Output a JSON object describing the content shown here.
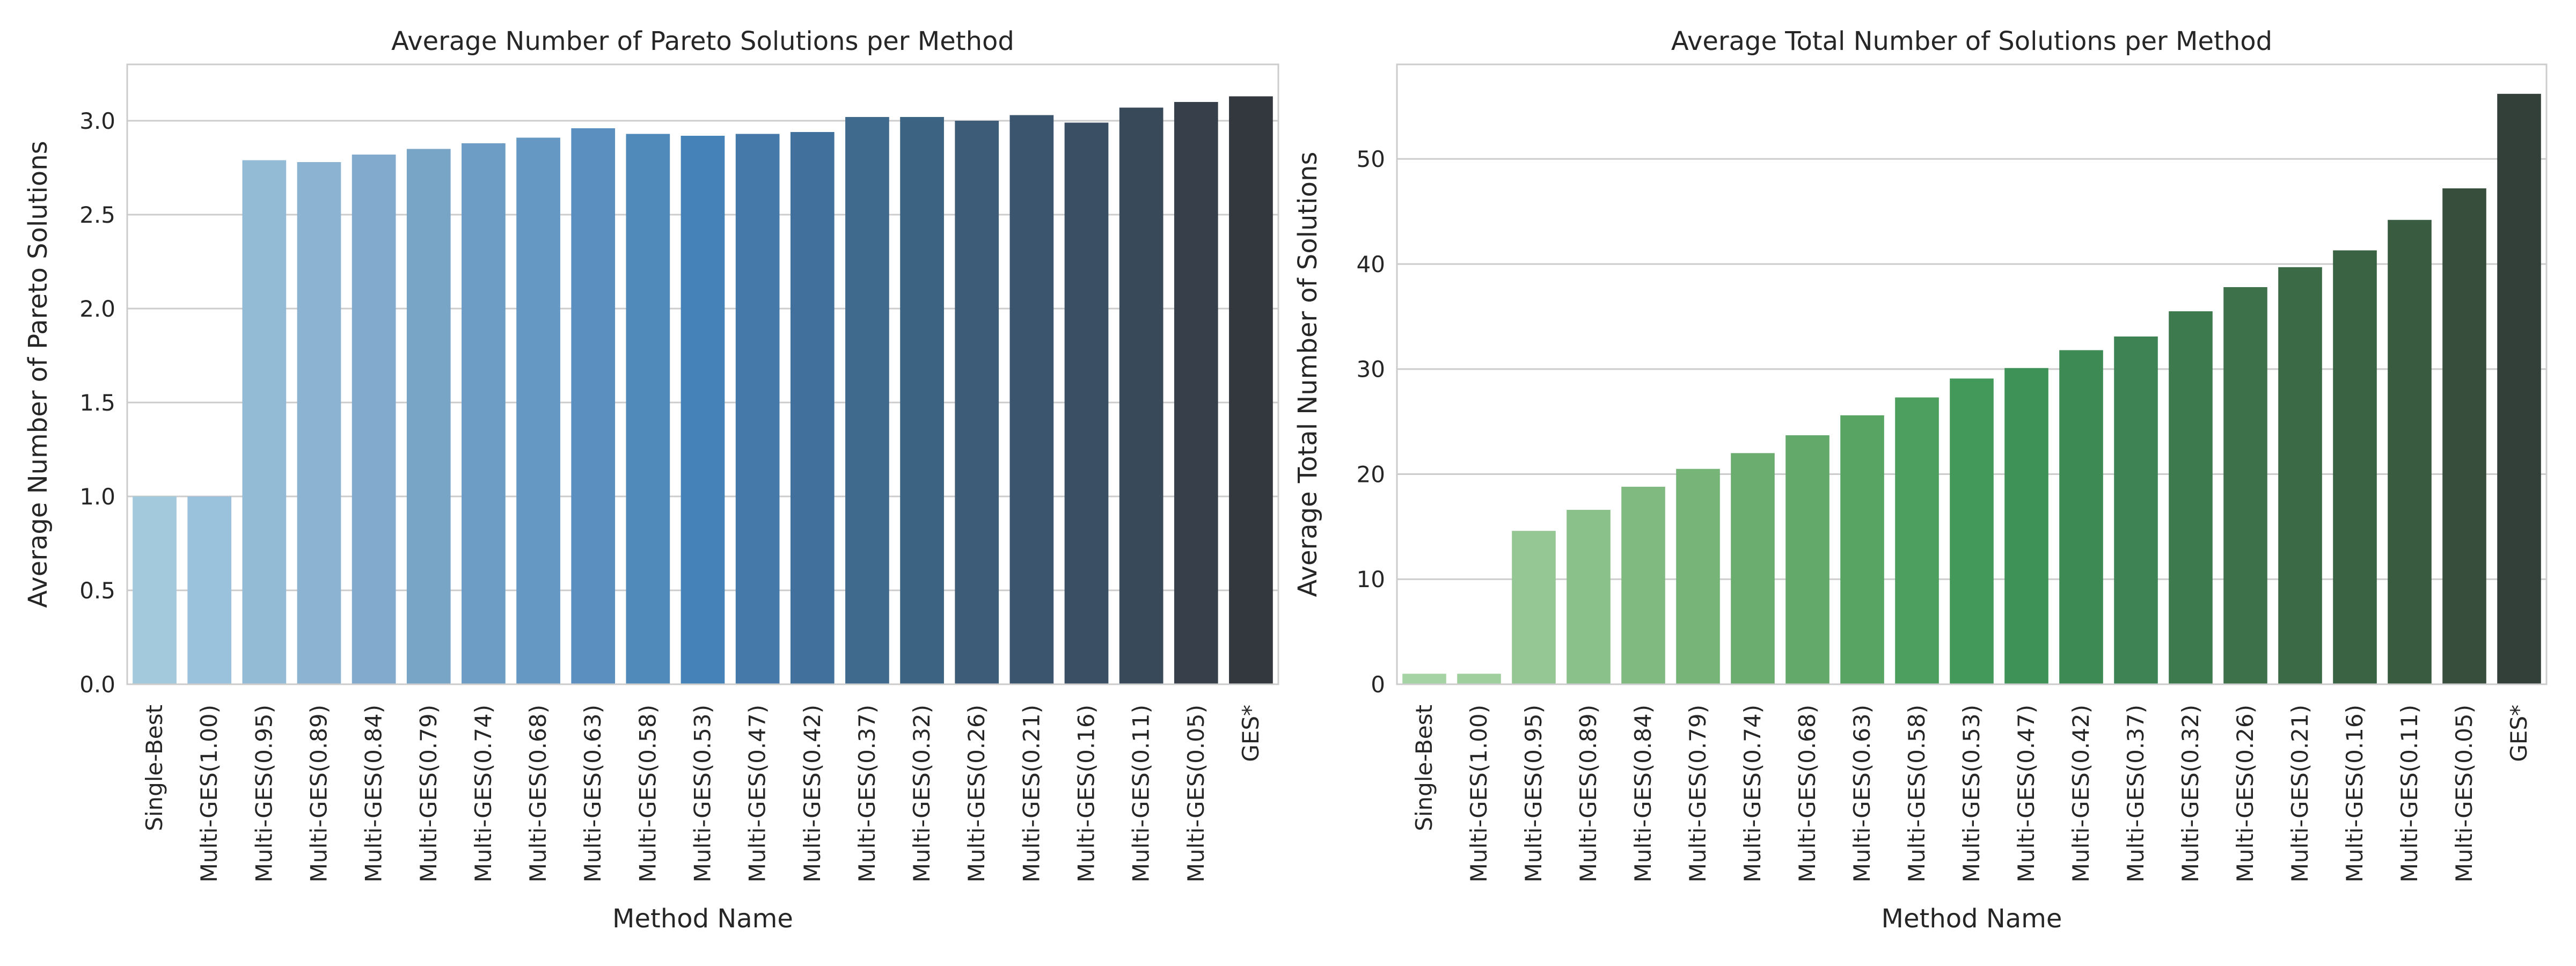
{
  "chart_data": [
    {
      "type": "bar",
      "title": "Average Number of Pareto Solutions per Method",
      "xlabel": "Method Name",
      "ylabel": "Average Number of Pareto Solutions",
      "categories": [
        "Single-Best",
        "Multi-GES(1.00)",
        "Multi-GES(0.95)",
        "Multi-GES(0.89)",
        "Multi-GES(0.84)",
        "Multi-GES(0.79)",
        "Multi-GES(0.74)",
        "Multi-GES(0.68)",
        "Multi-GES(0.63)",
        "Multi-GES(0.58)",
        "Multi-GES(0.53)",
        "Multi-GES(0.47)",
        "Multi-GES(0.42)",
        "Multi-GES(0.37)",
        "Multi-GES(0.32)",
        "Multi-GES(0.26)",
        "Multi-GES(0.21)",
        "Multi-GES(0.16)",
        "Multi-GES(0.11)",
        "Multi-GES(0.05)",
        "GES*"
      ],
      "values": [
        1.0,
        1.0,
        2.79,
        2.78,
        2.82,
        2.85,
        2.88,
        2.91,
        2.96,
        2.93,
        2.92,
        2.93,
        2.94,
        3.02,
        3.02,
        3.0,
        3.03,
        2.99,
        3.07,
        3.1,
        3.13
      ],
      "ylim": [
        0,
        3.3
      ],
      "yticks": [
        0.0,
        0.5,
        1.0,
        1.5,
        2.0,
        2.5,
        3.0
      ],
      "ytick_labels": [
        "0.0",
        "0.5",
        "1.0",
        "1.5",
        "2.0",
        "2.5",
        "3.0"
      ],
      "grid": "horizontal",
      "colors": [
        "#a3c9dc",
        "#9bc2dc",
        "#93bbd6",
        "#8db3d2",
        "#82aacc",
        "#78a4c6",
        "#6d9dc5",
        "#6698c4",
        "#5b8fc0",
        "#4f8abb",
        "#4482b8",
        "#4479a9",
        "#41709c",
        "#3f6a8e",
        "#3d6383",
        "#3c5c78",
        "#3b556e",
        "#3a4f64",
        "#38495a",
        "#363f4a",
        "#33383e"
      ]
    },
    {
      "type": "bar",
      "title": "Average Total Number of Solutions per Method",
      "xlabel": "Method Name",
      "ylabel": "Average Total Number of Solutions",
      "categories": [
        "Single-Best",
        "Multi-GES(1.00)",
        "Multi-GES(0.95)",
        "Multi-GES(0.89)",
        "Multi-GES(0.84)",
        "Multi-GES(0.79)",
        "Multi-GES(0.74)",
        "Multi-GES(0.68)",
        "Multi-GES(0.63)",
        "Multi-GES(0.58)",
        "Multi-GES(0.53)",
        "Multi-GES(0.47)",
        "Multi-GES(0.42)",
        "Multi-GES(0.37)",
        "Multi-GES(0.32)",
        "Multi-GES(0.26)",
        "Multi-GES(0.21)",
        "Multi-GES(0.16)",
        "Multi-GES(0.11)",
        "Multi-GES(0.05)",
        "GES*"
      ],
      "values": [
        1.0,
        1.0,
        14.6,
        16.6,
        18.8,
        20.5,
        22.0,
        23.7,
        25.6,
        27.3,
        29.1,
        30.1,
        31.8,
        33.1,
        35.5,
        37.8,
        39.7,
        41.3,
        44.2,
        47.2,
        56.2
      ],
      "ylim": [
        0,
        59
      ],
      "yticks": [
        0,
        10,
        20,
        30,
        40,
        50
      ],
      "ytick_labels": [
        "0",
        "10",
        "20",
        "30",
        "40",
        "50"
      ],
      "grid": "horizontal",
      "colors": [
        "#a6d3a4",
        "#9ecf9c",
        "#94c794",
        "#8ac18a",
        "#80ba80",
        "#76b477",
        "#6aad6e",
        "#62a96a",
        "#57a463",
        "#4d9f5f",
        "#43995a",
        "#3f9257",
        "#3e8a55",
        "#3e8354",
        "#3d7a4e",
        "#3c714a",
        "#3b6a47",
        "#3a6344",
        "#395c41",
        "#384e3d",
        "#33403a"
      ]
    }
  ]
}
